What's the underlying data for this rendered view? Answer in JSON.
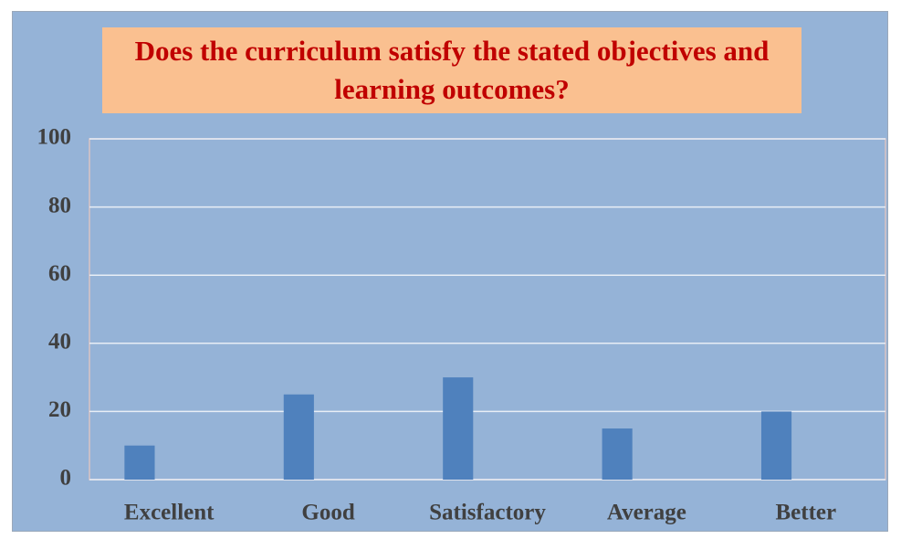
{
  "chart_data": {
    "type": "bar",
    "title": "Does the curriculum satisfy the stated objectives and learning outcomes?",
    "categories": [
      "Excellent",
      "Good",
      "Satisfactory",
      "Average",
      "Better"
    ],
    "values": [
      10,
      25,
      30,
      15,
      20
    ],
    "color": "#4f81bd",
    "ylim": [
      0,
      100
    ],
    "yticks": [
      0,
      20,
      40,
      60,
      80,
      100
    ],
    "grid": true
  }
}
